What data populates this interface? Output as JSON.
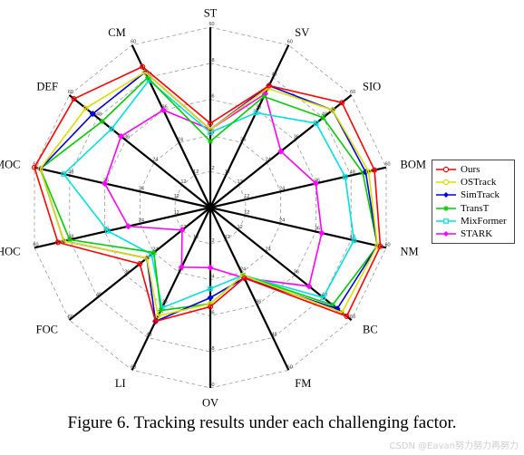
{
  "chart_data": {
    "type": "radar",
    "axes": [
      "ST",
      "SV",
      "SIO",
      "BOM",
      "NM",
      "BC",
      "FM",
      "OV",
      "LI",
      "FOC",
      "HOC",
      "MOC",
      "DEF",
      "CM"
    ],
    "rmax": 60,
    "rings": [
      12,
      24,
      36,
      48,
      60
    ],
    "ring_labels": [
      "12",
      "24",
      "36",
      "48",
      "60"
    ],
    "grid": true,
    "legend_position": "right",
    "series": [
      {
        "name": "Ours",
        "color": "#ff0000",
        "marker": "circle",
        "values": [
          28,
          45,
          56,
          56,
          58,
          58,
          26,
          33,
          42,
          30,
          52,
          60,
          58,
          52
        ]
      },
      {
        "name": "OSTrack",
        "color": "#dddd00",
        "marker": "circle",
        "values": [
          26,
          44,
          52,
          54,
          57,
          56,
          25,
          32,
          40,
          27,
          50,
          58,
          53,
          50
        ]
      },
      {
        "name": "SimTrack",
        "color": "#0000dd",
        "marker": "diamond",
        "values": [
          26,
          45,
          52,
          53,
          57,
          54,
          26,
          30,
          42,
          27,
          50,
          58,
          50,
          50
        ]
      },
      {
        "name": "TransT",
        "color": "#00cc00",
        "marker": "star",
        "values": [
          22,
          41,
          48,
          52,
          57,
          52,
          25,
          32,
          38,
          24,
          48,
          58,
          46,
          48
        ]
      },
      {
        "name": "MixFormer",
        "color": "#00e0e0",
        "marker": "square",
        "values": [
          25,
          35,
          45,
          46,
          49,
          48,
          25,
          27,
          37,
          25,
          35,
          50,
          42,
          47
        ]
      },
      {
        "name": "STARK",
        "color": "#ff00ff",
        "marker": "diamond",
        "values": [
          26,
          42,
          30,
          36,
          38,
          42,
          26,
          20,
          22,
          12,
          28,
          36,
          38,
          36
        ]
      }
    ]
  },
  "legend": {
    "items": [
      {
        "label": "Ours",
        "color": "#ff0000"
      },
      {
        "label": "OSTrack",
        "color": "#dddd00"
      },
      {
        "label": "SimTrack",
        "color": "#0000dd"
      },
      {
        "label": "TransT",
        "color": "#00cc00"
      },
      {
        "label": "MixFormer",
        "color": "#00e0e0"
      },
      {
        "label": "STARK",
        "color": "#ff00ff"
      }
    ]
  },
  "caption": "Figure 6. Tracking results under each challenging factor.",
  "watermark": "CSDN @Eavan努力努力再努力"
}
